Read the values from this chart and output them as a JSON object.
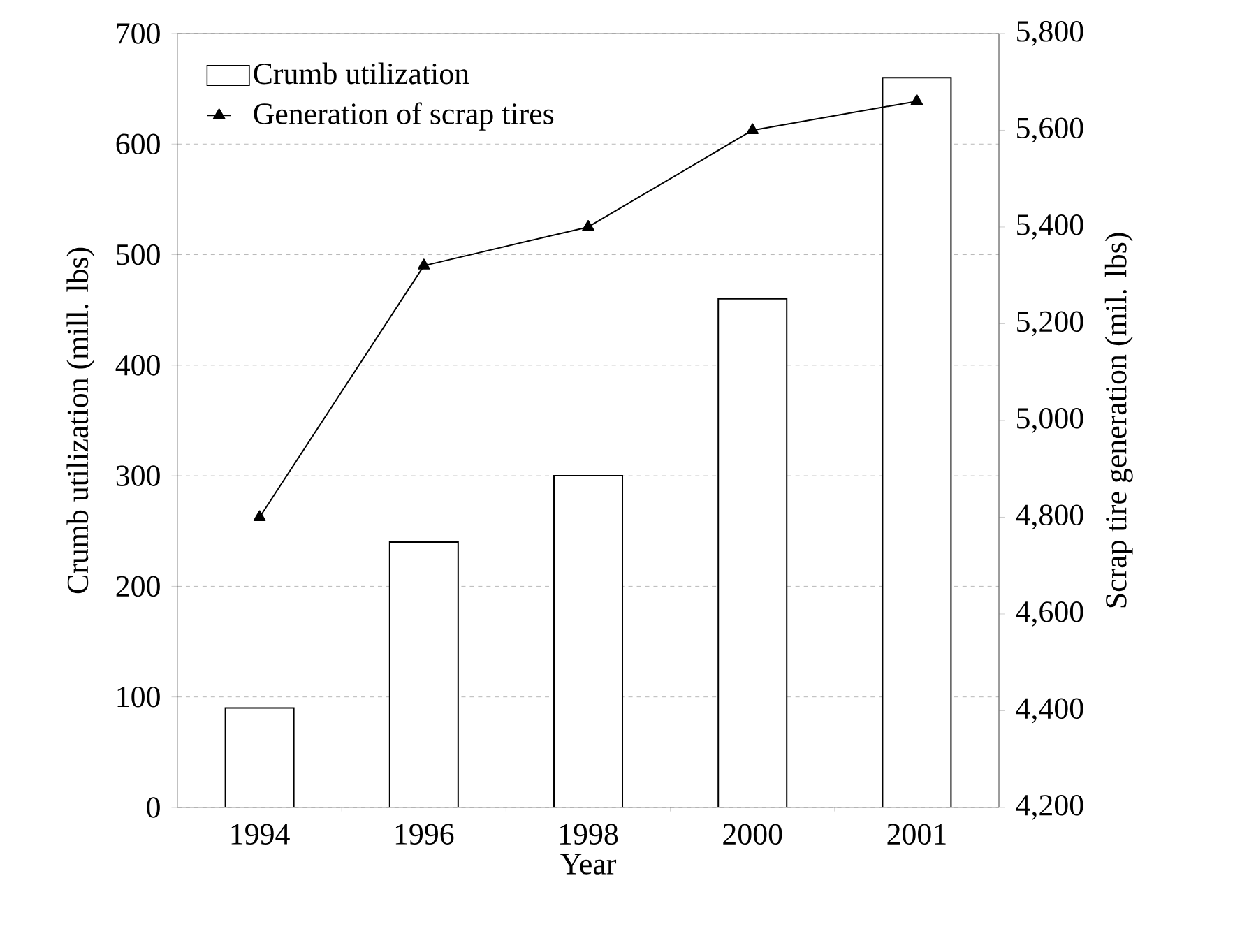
{
  "chart_data": {
    "type": "bar",
    "xlabel": "Year",
    "ylabel": "Crumb utilization (mill. lbs)",
    "y2label": "Scrap tire generation (mil. lbs)",
    "categories": [
      "1994",
      "1996",
      "1998",
      "2000",
      "2001"
    ],
    "series": [
      {
        "name": "Crumb utilization",
        "type": "bar",
        "color": "#ffffff",
        "values": [
          90,
          240,
          300,
          460,
          660
        ]
      },
      {
        "name": "Generation of scrap tires",
        "type": "line",
        "axis": "y2",
        "color": "#000000",
        "values": [
          4800,
          5320,
          5400,
          5600,
          5660
        ]
      }
    ],
    "ylim": [
      0,
      700
    ],
    "yticks": [
      0,
      100,
      200,
      300,
      400,
      500,
      600,
      700
    ],
    "y2lim": [
      4200,
      5800
    ],
    "y2ticks": [
      {
        "value": 4200,
        "label": "4,200"
      },
      {
        "value": 4400,
        "label": "4,400"
      },
      {
        "value": 4600,
        "label": "4,600"
      },
      {
        "value": 4800,
        "label": "4,800"
      },
      {
        "value": 5000,
        "label": "5,000"
      },
      {
        "value": 5200,
        "label": "5,200"
      },
      {
        "value": 5400,
        "label": "5,400"
      },
      {
        "value": 5600,
        "label": "5,600"
      },
      {
        "value": 5800,
        "label": "5,800"
      }
    ],
    "grid": "y",
    "legend": "top left",
    "marker": "triangle"
  }
}
